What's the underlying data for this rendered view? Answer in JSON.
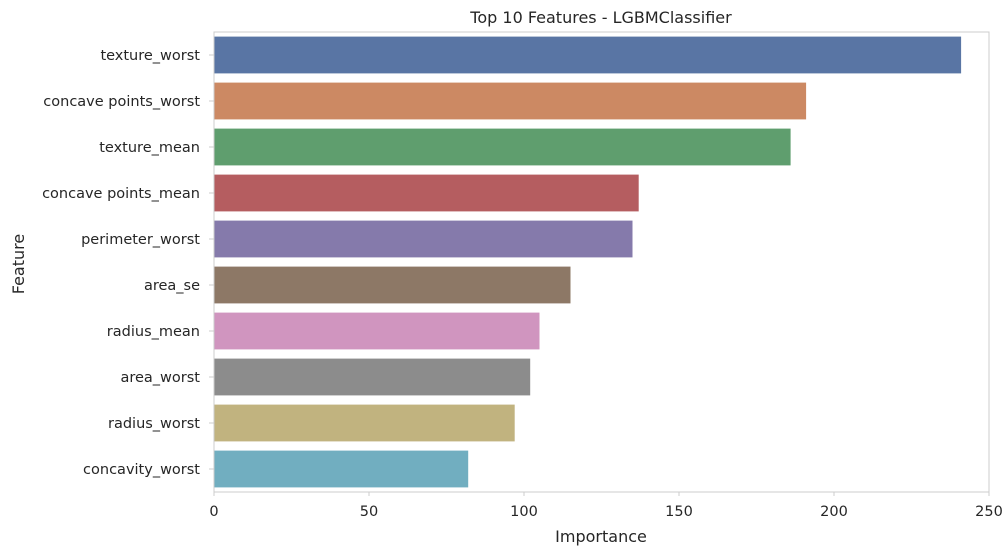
{
  "chart_data": {
    "type": "bar",
    "orientation": "horizontal",
    "title": "Top 10 Features - LGBMClassifier",
    "xlabel": "Importance",
    "ylabel": "Feature",
    "xlim": [
      0,
      250
    ],
    "xticks": [
      0,
      50,
      100,
      150,
      200,
      250
    ],
    "grid": false,
    "categories": [
      "texture_worst",
      "concave points_worst",
      "texture_mean",
      "concave points_mean",
      "perimeter_worst",
      "area_se",
      "radius_mean",
      "area_worst",
      "radius_worst",
      "concavity_worst"
    ],
    "values": [
      241,
      191,
      186,
      137,
      135,
      115,
      105,
      102,
      97,
      82
    ],
    "colors": [
      "#5975A4",
      "#CC8963",
      "#5F9E6E",
      "#B55D60",
      "#857AAB",
      "#8D7866",
      "#D095BF",
      "#8C8C8C",
      "#C1B37F",
      "#71AEC0"
    ]
  }
}
